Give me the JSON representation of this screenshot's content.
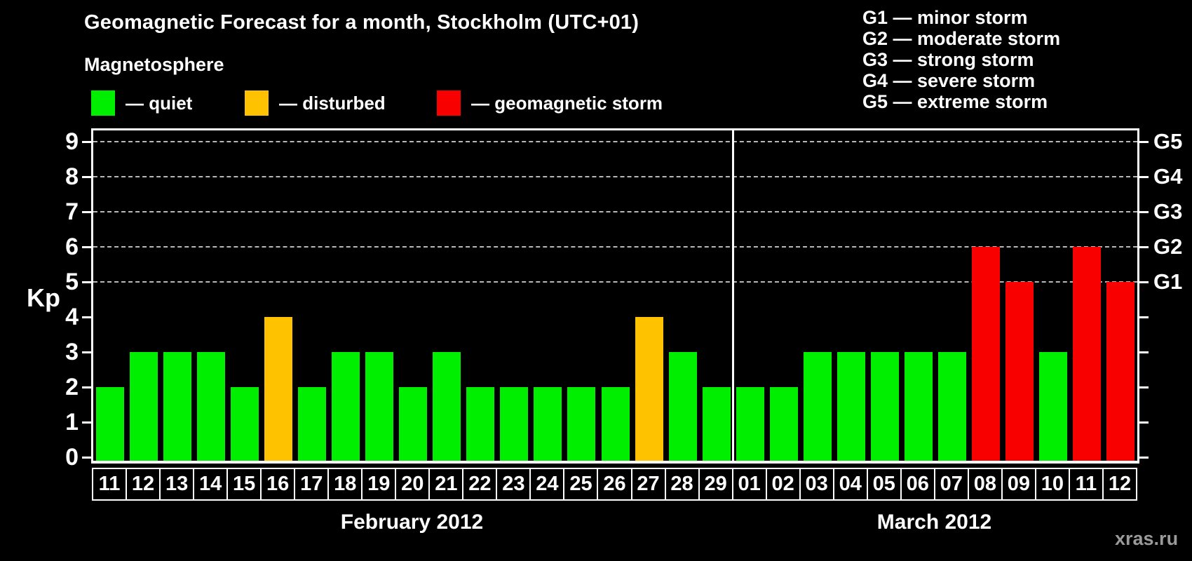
{
  "title": "Geomagnetic Forecast for a month, Stockholm (UTC+01)",
  "subtitle": "Magnetosphere",
  "legend": {
    "items": [
      {
        "status": "quiet",
        "label": "— quiet",
        "color": "#00ee00"
      },
      {
        "status": "disturbed",
        "label": "— disturbed",
        "color": "#ffc200"
      },
      {
        "status": "storm",
        "label": "— geomagnetic storm",
        "color": "#f80000"
      }
    ]
  },
  "storm_scale_legend": [
    "G1 — minor storm",
    "G2 — moderate storm",
    "G3 — strong storm",
    "G4 — severe storm",
    "G5 — extreme storm"
  ],
  "y_axis": {
    "label": "Kp",
    "ticks": [
      0,
      1,
      2,
      3,
      4,
      5,
      6,
      7,
      8,
      9
    ]
  },
  "right_axis": {
    "levels": [
      {
        "label": "G5",
        "kp": 9
      },
      {
        "label": "G4",
        "kp": 8
      },
      {
        "label": "G3",
        "kp": 7
      },
      {
        "label": "G2",
        "kp": 6
      },
      {
        "label": "G1",
        "kp": 5
      }
    ]
  },
  "watermark": "xras.ru",
  "chart_data": {
    "type": "bar",
    "title": "Geomagnetic Forecast for a month, Stockholm (UTC+01)",
    "xlabel": "",
    "ylabel": "Kp",
    "ylim": [
      0,
      9
    ],
    "grid": "dashed horizontal lines at Kp 5-9 only",
    "legend_position": "top-left",
    "months": [
      {
        "label": "February 2012",
        "days": 19
      },
      {
        "label": "March 2012",
        "days": 12
      }
    ],
    "categories": [
      "11",
      "12",
      "13",
      "14",
      "15",
      "16",
      "17",
      "18",
      "19",
      "20",
      "21",
      "22",
      "23",
      "24",
      "25",
      "26",
      "27",
      "28",
      "29",
      "01",
      "02",
      "03",
      "04",
      "05",
      "06",
      "07",
      "08",
      "09",
      "10",
      "11",
      "12"
    ],
    "values": [
      2,
      3,
      3,
      3,
      2,
      4,
      2,
      3,
      3,
      2,
      3,
      2,
      2,
      2,
      2,
      2,
      4,
      3,
      2,
      2,
      2,
      3,
      3,
      3,
      3,
      3,
      6,
      5,
      3,
      6,
      5
    ],
    "statuses": [
      "quiet",
      "quiet",
      "quiet",
      "quiet",
      "quiet",
      "disturbed",
      "quiet",
      "quiet",
      "quiet",
      "quiet",
      "quiet",
      "quiet",
      "quiet",
      "quiet",
      "quiet",
      "quiet",
      "disturbed",
      "quiet",
      "quiet",
      "quiet",
      "quiet",
      "quiet",
      "quiet",
      "quiet",
      "quiet",
      "quiet",
      "storm",
      "storm",
      "quiet",
      "storm",
      "storm"
    ]
  }
}
